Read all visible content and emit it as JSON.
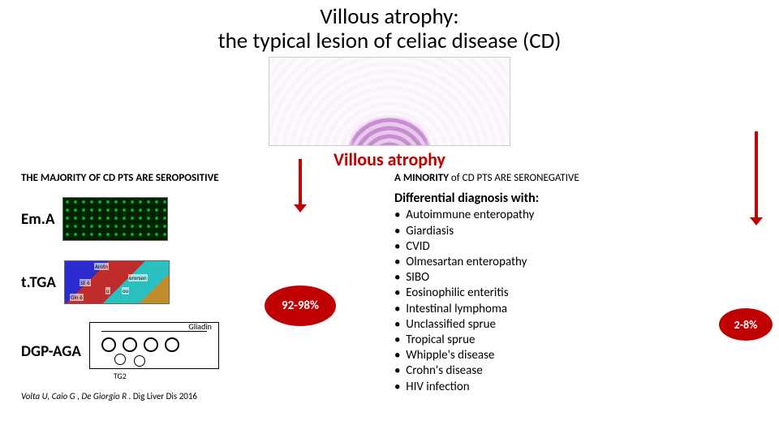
{
  "title_line1": "Villous atrophy:",
  "title_line2": "the typical lesion of celiac disease (CD)",
  "hero_caption": "Villous atrophy",
  "left": {
    "heading": "THE MAJORITY OF CD PTS ARE SEROPOSITIVE",
    "tests": {
      "ema": "Em.A",
      "ttga": "t.TGA",
      "dgp": "DGP-AGA"
    },
    "gliadin_label": "Gliadin",
    "tg2_label": "TG2",
    "percent": "92-98%",
    "citation_authors": "Volta U, Caio G , De Giorgio R .",
    "citation_journal": " Dig Liver Dis 2016"
  },
  "right": {
    "heading_pre": "A MINORITY",
    "heading_post": " of CD PTS ARE SERONEGATIVE",
    "dx_title": "Differential diagnosis with:",
    "dx_items": [
      "Autoimmune enteropathy",
      "Giardiasis",
      "CVID",
      "Olmesartan enteropathy",
      "SIBO",
      "Eosinophilic enteritis",
      "Intestinal lymphoma",
      "Unclassified sprue",
      "Tropical sprue",
      "Whipple's disease",
      "Crohn's disease",
      "HIV infection"
    ],
    "percent": "2-8%"
  },
  "colors": {
    "accent_red": "#c00000",
    "text": "#000000",
    "bg": "#ffffff"
  },
  "thumbs": {
    "protein_tags": [
      "Arotn",
      "SE 6",
      "erorsen",
      "u",
      "ou",
      "Gln 6"
    ]
  }
}
